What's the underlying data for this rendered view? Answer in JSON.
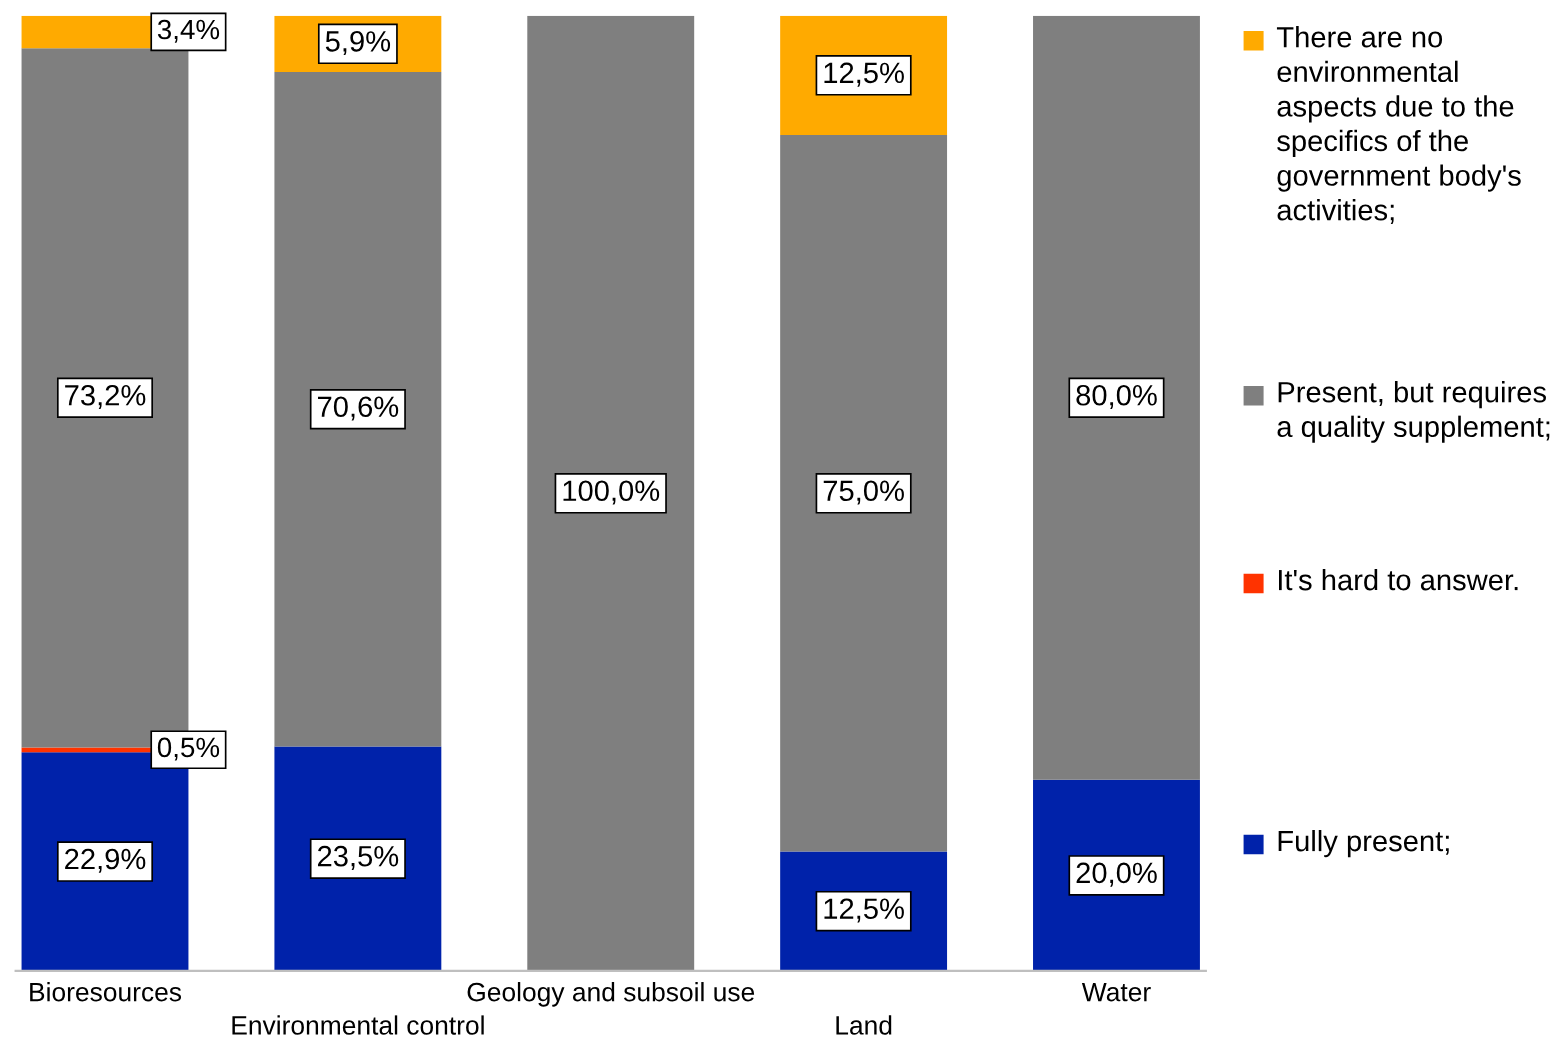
{
  "chart_data": {
    "type": "bar",
    "stacked": true,
    "legend": "right",
    "grid": false,
    "categories": [
      "Bioresources",
      "Environmental control",
      "Geology and subsoil use",
      "Land",
      "Water"
    ],
    "series": [
      {
        "name": "Fully present;",
        "color": "#0022aa",
        "values": [
          22.9,
          23.5,
          0,
          12.5,
          20.0
        ],
        "value_labels": [
          "22,9%",
          "23,5%",
          null,
          "12,5%",
          "20,0%"
        ]
      },
      {
        "name": "It's hard to answer.",
        "color": "#ff3300",
        "values": [
          0.5,
          0,
          0,
          0,
          0
        ],
        "value_labels": [
          "0,5%",
          null,
          null,
          null,
          null
        ]
      },
      {
        "name": "Present, but requires a quality supplement;",
        "color": "#7f7f7f",
        "values": [
          73.2,
          70.6,
          100.0,
          75.0,
          80.0
        ],
        "value_labels": [
          "73,2%",
          "70,6%",
          "100,0%",
          "75,0%",
          "80,0%"
        ]
      },
      {
        "name": "There are no environmental aspects due to the specifics of the government body's activities;",
        "color": "#ffaa00",
        "values": [
          3.4,
          5.9,
          0,
          12.5,
          0
        ],
        "value_labels": [
          "3,4%",
          "5,9%",
          null,
          "12,5%",
          null
        ]
      }
    ]
  }
}
